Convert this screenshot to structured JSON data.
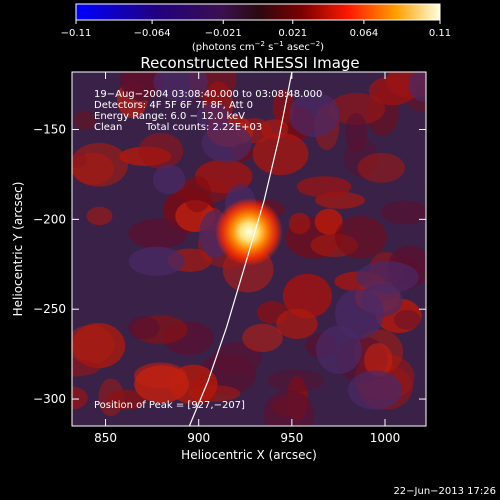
{
  "chart_data": {
    "type": "heatmap",
    "title": "Reconstructed RHESSI Image",
    "xlabel": "Heliocentric X (arcsec)",
    "ylabel": "Heliocentric Y (arcsec)",
    "xlim": [
      832,
      1022
    ],
    "ylim": [
      -315,
      -118
    ],
    "x_ticks": [
      850,
      900,
      950,
      1000
    ],
    "x_tick_labels": [
      "850",
      "900",
      "950",
      "1000"
    ],
    "y_ticks": [
      -150,
      -200,
      -250,
      -300
    ],
    "y_tick_labels": [
      "−150",
      "−200",
      "−250",
      "−300"
    ],
    "colorbar": {
      "min": -0.11,
      "max": 0.11,
      "ticks": [
        -0.11,
        -0.064,
        -0.021,
        0.021,
        0.064,
        0.11
      ],
      "tick_labels": [
        "−0.11",
        "−0.064",
        "−0.021",
        "0.021",
        "0.064",
        "0.11"
      ],
      "unit_prefix": "(photons cm",
      "unit_sup1": "−2",
      "unit_mid": " s",
      "unit_sup2": "−1",
      "unit_suffix": " asec",
      "unit_sup3": "−2",
      "unit_close": ")"
    },
    "annotations": {
      "time_range": "19−Aug−2004 03:08:40.000 to 03:08:48.000",
      "detectors": "Detectors: 4F 5F 6F 7F 8F, Att 0",
      "energy": "Energy Range: 6.0 − 12.0 keV",
      "clean": "Clean",
      "counts": "Total counts: 2.22E+03",
      "peak": "Position of Peak = [927,−207]"
    },
    "peak": {
      "x": 927,
      "y": -207,
      "value": 0.11
    },
    "limb_curve": [
      [
        895,
        -315
      ],
      [
        905,
        -290
      ],
      [
        915,
        -260
      ],
      [
        925,
        -225
      ],
      [
        935,
        -190
      ],
      [
        943,
        -155
      ],
      [
        950,
        -118
      ]
    ],
    "footer_timestamp": "22−Jun−2013 17:26"
  }
}
